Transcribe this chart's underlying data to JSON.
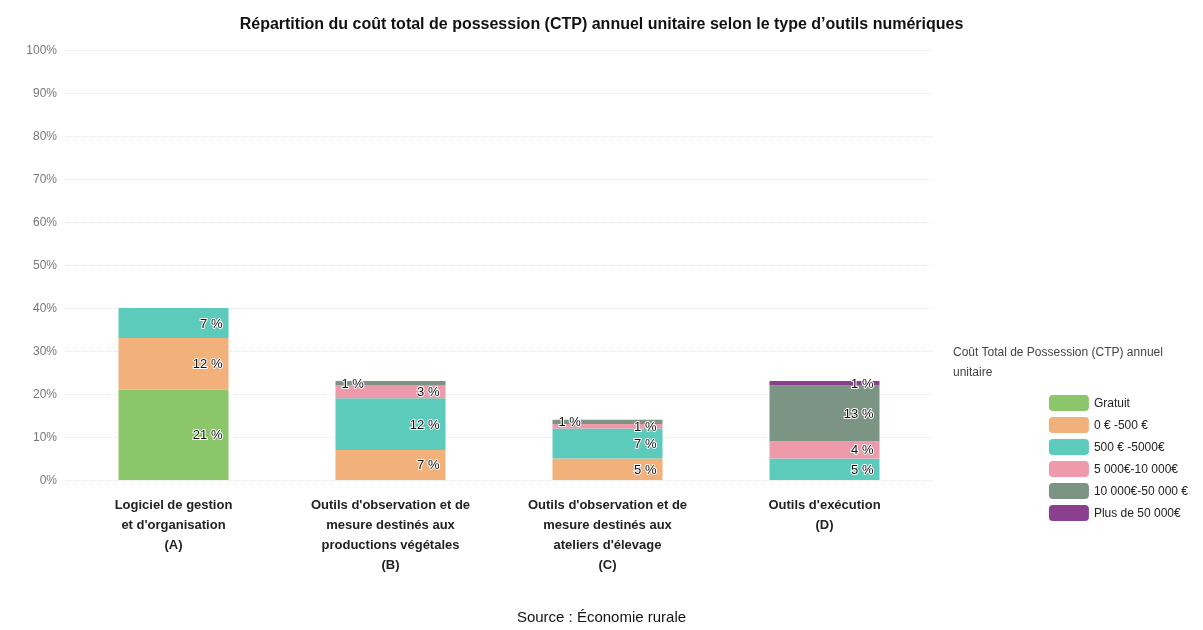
{
  "chart_data": {
    "type": "bar",
    "stacked": true,
    "title": "Répartition du coût total de possession (CTP) annuel unitaire selon le type d’outils numériques",
    "categories": [
      "Logiciel de gestion\net d'organisation\n(A)",
      "Outils d'observation et de\nmesure destinés aux\nproductions végétales\n(B)",
      "Outils d'observation et de\nmesure destinés aux\nateliers d'élevage\n(C)",
      "Outils d'exécution\n(D)"
    ],
    "series": [
      {
        "name": "Gratuit",
        "color": "#8cc66a",
        "values": [
          21,
          null,
          null,
          null
        ],
        "value_labels": [
          "21 %",
          null,
          null,
          null
        ]
      },
      {
        "name": "0 € -500 €",
        "color": "#f2b07a",
        "values": [
          12,
          7,
          5,
          null
        ],
        "value_labels": [
          "12 %",
          "7 %",
          "5 %",
          null
        ]
      },
      {
        "name": "500 € -5000€",
        "color": "#5ccbbb",
        "values": [
          7,
          12,
          7,
          5
        ],
        "value_labels": [
          "7 %",
          "12 %",
          "7 %",
          "5 %"
        ]
      },
      {
        "name": "5 000€-10 000€",
        "color": "#ee9aaa",
        "values": [
          null,
          3,
          1,
          4
        ],
        "value_labels": [
          null,
          "3 %",
          "1 %",
          "4 %"
        ]
      },
      {
        "name": "10 000€-50 000 €",
        "color": "#7c9484",
        "values": [
          null,
          1,
          1,
          13
        ],
        "value_labels": [
          null,
          "1 %",
          "1 %",
          "13 %"
        ]
      },
      {
        "name": "Plus de 50 000€",
        "color": "#8a3f8f",
        "values": [
          null,
          null,
          null,
          1
        ],
        "value_labels": [
          null,
          null,
          null,
          "1 %"
        ]
      }
    ],
    "ylim": [
      0,
      100
    ],
    "yticks": [
      {
        "value": 0,
        "label": "0%"
      },
      {
        "value": 10,
        "label": "10%"
      },
      {
        "value": 20,
        "label": "20%"
      },
      {
        "value": 30,
        "label": "30%"
      },
      {
        "value": 40,
        "label": "40%"
      },
      {
        "value": 50,
        "label": "50%"
      },
      {
        "value": 60,
        "label": "60%"
      },
      {
        "value": 70,
        "label": "70%"
      },
      {
        "value": 80,
        "label": "80%"
      },
      {
        "value": 90,
        "label": "90%"
      },
      {
        "value": 100,
        "label": "100%"
      }
    ],
    "grid": "y",
    "legend": "right",
    "legend_title": "Coût Total de Possession (CTP) annuel unitaire",
    "annotations": [
      "Source : Économie rurale"
    ]
  }
}
